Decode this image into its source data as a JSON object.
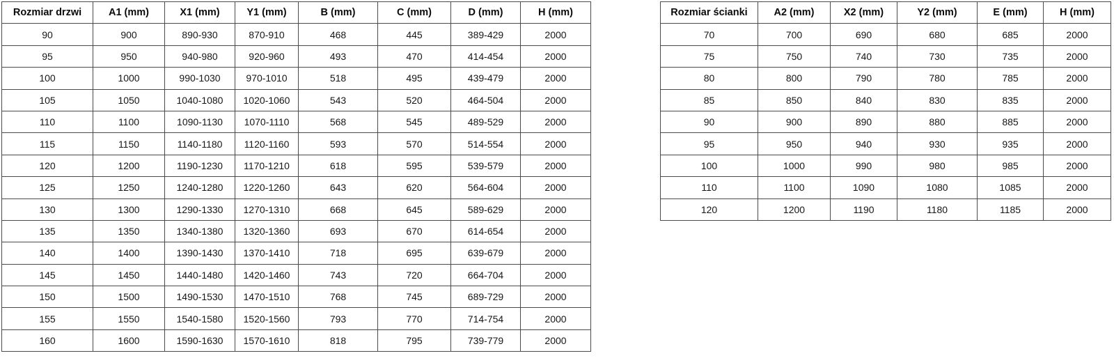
{
  "tables": {
    "door_table": {
      "headers": [
        "Rozmiar drzwi",
        "A1 (mm)",
        "X1 (mm)",
        "Y1 (mm)",
        "B (mm)",
        "C (mm)",
        "D (mm)",
        "H (mm)"
      ],
      "rows": [
        [
          "90",
          "900",
          "890-930",
          "870-910",
          "468",
          "445",
          "389-429",
          "2000"
        ],
        [
          "95",
          "950",
          "940-980",
          "920-960",
          "493",
          "470",
          "414-454",
          "2000"
        ],
        [
          "100",
          "1000",
          "990-1030",
          "970-1010",
          "518",
          "495",
          "439-479",
          "2000"
        ],
        [
          "105",
          "1050",
          "1040-1080",
          "1020-1060",
          "543",
          "520",
          "464-504",
          "2000"
        ],
        [
          "110",
          "1100",
          "1090-1130",
          "1070-1110",
          "568",
          "545",
          "489-529",
          "2000"
        ],
        [
          "115",
          "1150",
          "1140-1180",
          "1120-1160",
          "593",
          "570",
          "514-554",
          "2000"
        ],
        [
          "120",
          "1200",
          "1190-1230",
          "1170-1210",
          "618",
          "595",
          "539-579",
          "2000"
        ],
        [
          "125",
          "1250",
          "1240-1280",
          "1220-1260",
          "643",
          "620",
          "564-604",
          "2000"
        ],
        [
          "130",
          "1300",
          "1290-1330",
          "1270-1310",
          "668",
          "645",
          "589-629",
          "2000"
        ],
        [
          "135",
          "1350",
          "1340-1380",
          "1320-1360",
          "693",
          "670",
          "614-654",
          "2000"
        ],
        [
          "140",
          "1400",
          "1390-1430",
          "1370-1410",
          "718",
          "695",
          "639-679",
          "2000"
        ],
        [
          "145",
          "1450",
          "1440-1480",
          "1420-1460",
          "743",
          "720",
          "664-704",
          "2000"
        ],
        [
          "150",
          "1500",
          "1490-1530",
          "1470-1510",
          "768",
          "745",
          "689-729",
          "2000"
        ],
        [
          "155",
          "1550",
          "1540-1580",
          "1520-1560",
          "793",
          "770",
          "714-754",
          "2000"
        ],
        [
          "160",
          "1600",
          "1590-1630",
          "1570-1610",
          "818",
          "795",
          "739-779",
          "2000"
        ]
      ]
    },
    "wall_table": {
      "headers": [
        "Rozmiar ścianki",
        "A2 (mm)",
        "X2 (mm)",
        "Y2 (mm)",
        "E (mm)",
        "H (mm)"
      ],
      "rows": [
        [
          "70",
          "700",
          "690",
          "680",
          "685",
          "2000"
        ],
        [
          "75",
          "750",
          "740",
          "730",
          "735",
          "2000"
        ],
        [
          "80",
          "800",
          "790",
          "780",
          "785",
          "2000"
        ],
        [
          "85",
          "850",
          "840",
          "830",
          "835",
          "2000"
        ],
        [
          "90",
          "900",
          "890",
          "880",
          "885",
          "2000"
        ],
        [
          "95",
          "950",
          "940",
          "930",
          "935",
          "2000"
        ],
        [
          "100",
          "1000",
          "990",
          "980",
          "985",
          "2000"
        ],
        [
          "110",
          "1100",
          "1090",
          "1080",
          "1085",
          "2000"
        ],
        [
          "120",
          "1200",
          "1190",
          "1180",
          "1185",
          "2000"
        ]
      ]
    }
  }
}
